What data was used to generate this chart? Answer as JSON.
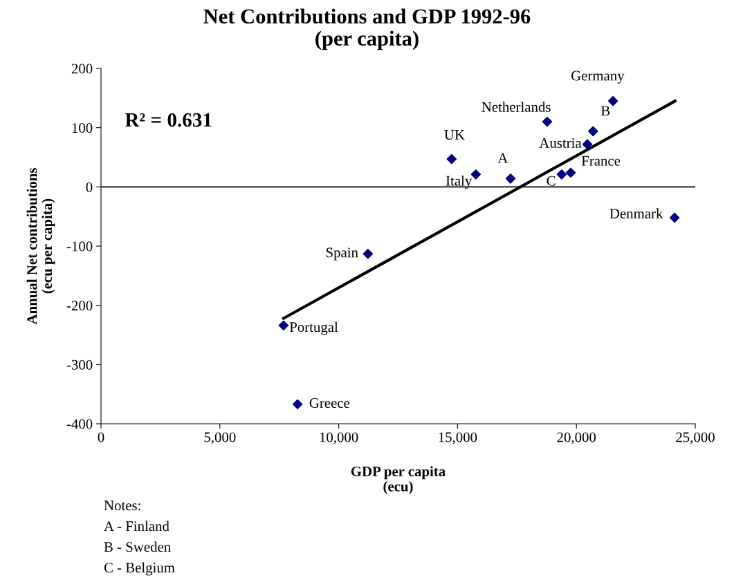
{
  "chart_data": {
    "type": "scatter",
    "title": "Net Contributions and GDP 1992-96\n(per capita)",
    "xlabel": "GDP per capita\n(ecu)",
    "ylabel": "Annual Net contributions\n(ecu per capita)",
    "xlim": [
      0,
      25000
    ],
    "ylim": [
      -400,
      200
    ],
    "xticks": [
      0,
      {
        "value": 5000,
        "label": "5,000"
      },
      {
        "value": 10000,
        "label": "10,000"
      },
      {
        "value": 15000,
        "label": "15,000"
      },
      {
        "value": 20000,
        "label": "20,000"
      },
      {
        "value": 25000,
        "label": "25,000"
      }
    ],
    "yticks": [
      -400,
      -300,
      -200,
      -100,
      0,
      100,
      200
    ],
    "marker": "diamond",
    "grid": false,
    "legend": false,
    "series": [
      {
        "color": "#000080",
        "x": [
          14750,
          15770,
          17230,
          18770,
          19380,
          19760,
          20460,
          20700,
          21540,
          24130,
          11230,
          7680,
          8270
        ],
        "values": [
          47,
          21,
          14,
          110,
          21,
          24,
          72,
          94,
          145,
          -52,
          -113,
          -234,
          -367
        ]
      },
      {
        "type": "line",
        "marker": "none",
        "color": "#000000",
        "x": [
          7680,
          24150
        ],
        "values": [
          -222,
          145
        ]
      }
    ],
    "ref_lines": [
      {
        "axis": "y",
        "value": 0,
        "color": "#000000"
      }
    ],
    "annotations": [
      "R² = 0.631",
      "Notes:",
      "A - Finland",
      "B - Sweden",
      "C - Belgium",
      {
        "text": "UK",
        "x": 14750,
        "y": 47
      },
      {
        "text": "Italy",
        "x": 15770,
        "y": 21
      },
      {
        "text": "A",
        "x": 17230,
        "y": 14
      },
      {
        "text": "Netherlands",
        "x": 18770,
        "y": 110
      },
      {
        "text": "C",
        "x": 19380,
        "y": 21
      },
      {
        "text": "France",
        "x": 19760,
        "y": 24
      },
      {
        "text": "Austria",
        "x": 20460,
        "y": 72
      },
      {
        "text": "B",
        "x": 20700,
        "y": 94
      },
      {
        "text": "Germany",
        "x": 21540,
        "y": 145
      },
      {
        "text": "Denmark",
        "x": 24130,
        "y": -52
      },
      {
        "text": "Spain",
        "x": 11230,
        "y": -113
      },
      {
        "text": "Portugal",
        "x": 7680,
        "y": -234
      },
      {
        "text": "Greece",
        "x": 8270,
        "y": -367
      }
    ]
  }
}
